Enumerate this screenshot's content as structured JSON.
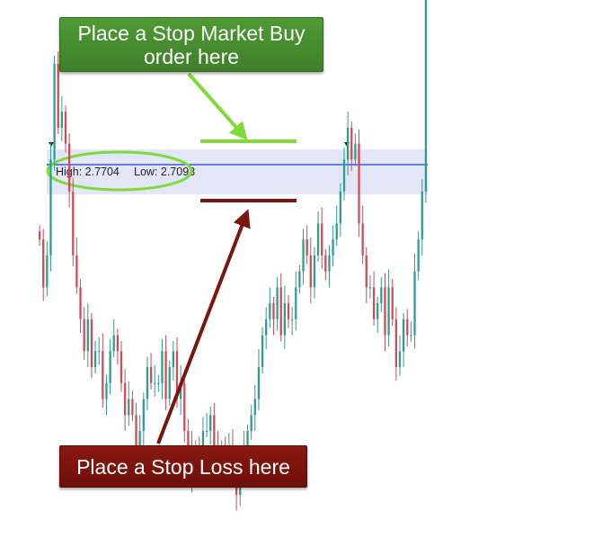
{
  "annotations": {
    "buy_callout": "Place a Stop Market Buy order here",
    "stop_callout": "Place a Stop Loss here"
  },
  "range_box": {
    "high_label": "High: 2.7704",
    "low_label": "Low: 2.7093"
  },
  "colors": {
    "up_candle": "#2e9e8a",
    "down_candle": "#d24a55",
    "range_fill": "#e2e6f7",
    "high_line": "#3b5bd6",
    "buy_accent": "#7ddb3a",
    "stop_accent": "#7a1510",
    "buy_callout_bg": "#468c2e",
    "stop_callout_bg": "#7a1510"
  },
  "chart_data": {
    "type": "candlestick",
    "ylim": [
      2.49,
      2.8
    ],
    "range_high": 2.7704,
    "range_low": 2.7093,
    "buy_stop_level": 2.776,
    "stop_loss_level": 2.7055,
    "series": [
      {
        "values": [
          2.65,
          2.62,
          2.64,
          2.7,
          2.76,
          2.72,
          2.73,
          2.71,
          2.68,
          2.64,
          2.62,
          2.6,
          2.58,
          2.6,
          2.57,
          2.58,
          2.58,
          2.55,
          2.56,
          2.58,
          2.59,
          2.58,
          2.56,
          2.54,
          2.55,
          2.54,
          2.52,
          2.53,
          2.55,
          2.57,
          2.56,
          2.56,
          2.56,
          2.58,
          2.55,
          2.57,
          2.58,
          2.55,
          2.56,
          2.53,
          2.52,
          2.5,
          2.52,
          2.51,
          2.53,
          2.53,
          2.54,
          2.52,
          2.51,
          2.52,
          2.51,
          2.52,
          2.5,
          2.49,
          2.51,
          2.52,
          2.53,
          2.54,
          2.55,
          2.57,
          2.59,
          2.6,
          2.61,
          2.6,
          2.62,
          2.59,
          2.61,
          2.6,
          2.6,
          2.62,
          2.63,
          2.65,
          2.64,
          2.62,
          2.64,
          2.66,
          2.64,
          2.63,
          2.64,
          2.65,
          2.66,
          2.68,
          2.7,
          2.72,
          2.7,
          2.71,
          2.66,
          2.64,
          2.62,
          2.62,
          2.6,
          2.61,
          2.62,
          2.59,
          2.62,
          2.6,
          2.57,
          2.58,
          2.6,
          2.59,
          2.59,
          2.63,
          2.65,
          2.68,
          2.8
        ]
      }
    ]
  }
}
